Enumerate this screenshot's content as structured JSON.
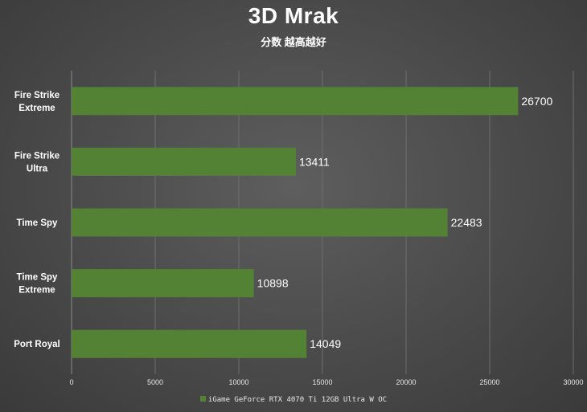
{
  "chart_data": {
    "type": "bar",
    "orientation": "horizontal",
    "title": "3D Mrak",
    "subtitle": "分数 越高越好",
    "categories": [
      [
        "Fire Strike",
        "Extreme"
      ],
      [
        "Fire Strike",
        "Ultra"
      ],
      [
        "Time Spy"
      ],
      [
        "Time Spy",
        "Extreme"
      ],
      [
        "Port Royal"
      ]
    ],
    "series": [
      {
        "name": "iGame GeForce RTX 4070 Ti 12GB Ultra W OC",
        "color": "#548235",
        "values": [
          26700,
          13411,
          22483,
          10898,
          14049
        ]
      }
    ],
    "xlim": [
      0,
      30000
    ],
    "xticks": [
      0,
      5000,
      10000,
      15000,
      20000,
      25000,
      30000
    ],
    "grid": "vertical",
    "legend": "bottom-center"
  }
}
